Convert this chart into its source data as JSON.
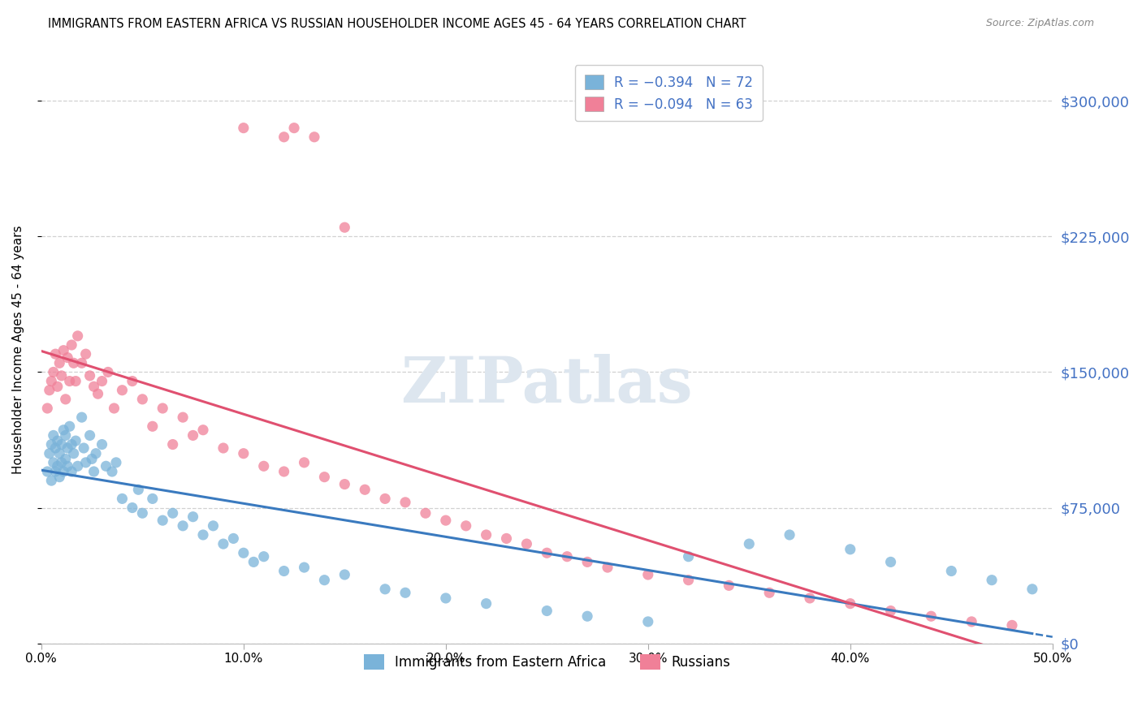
{
  "title": "IMMIGRANTS FROM EASTERN AFRICA VS RUSSIAN HOUSEHOLDER INCOME AGES 45 - 64 YEARS CORRELATION CHART",
  "source": "Source: ZipAtlas.com",
  "ylabel": "Householder Income Ages 45 - 64 years",
  "ytick_labels": [
    "$0",
    "$75,000",
    "$150,000",
    "$225,000",
    "$300,000"
  ],
  "ytick_values": [
    0,
    75000,
    150000,
    225000,
    300000
  ],
  "xlim": [
    0.0,
    50.0
  ],
  "ylim": [
    0,
    325000
  ],
  "series1_color": "#7ab3d9",
  "series2_color": "#f08098",
  "trendline1_color": "#3a7abf",
  "trendline2_color": "#e05070",
  "background_color": "#ffffff",
  "grid_color": "#cccccc",
  "R1": -0.394,
  "N1": 72,
  "R2": -0.094,
  "N2": 63,
  "blue_scatter_x": [
    0.3,
    0.4,
    0.5,
    0.5,
    0.6,
    0.6,
    0.7,
    0.7,
    0.8,
    0.8,
    0.9,
    0.9,
    1.0,
    1.0,
    1.1,
    1.1,
    1.2,
    1.2,
    1.3,
    1.3,
    1.4,
    1.5,
    1.5,
    1.6,
    1.7,
    1.8,
    2.0,
    2.1,
    2.2,
    2.4,
    2.5,
    2.6,
    2.7,
    3.0,
    3.2,
    3.5,
    3.7,
    4.0,
    4.5,
    4.8,
    5.0,
    5.5,
    6.0,
    6.5,
    7.0,
    7.5,
    8.0,
    8.5,
    9.0,
    9.5,
    10.0,
    10.5,
    11.0,
    12.0,
    13.0,
    14.0,
    15.0,
    17.0,
    18.0,
    20.0,
    22.0,
    25.0,
    27.0,
    30.0,
    32.0,
    35.0,
    37.0,
    40.0,
    42.0,
    45.0,
    47.0,
    49.0
  ],
  "blue_scatter_y": [
    95000,
    105000,
    110000,
    90000,
    115000,
    100000,
    108000,
    95000,
    112000,
    98000,
    105000,
    92000,
    110000,
    100000,
    118000,
    95000,
    115000,
    102000,
    108000,
    98000,
    120000,
    110000,
    95000,
    105000,
    112000,
    98000,
    125000,
    108000,
    100000,
    115000,
    102000,
    95000,
    105000,
    110000,
    98000,
    95000,
    100000,
    80000,
    75000,
    85000,
    72000,
    80000,
    68000,
    72000,
    65000,
    70000,
    60000,
    65000,
    55000,
    58000,
    50000,
    45000,
    48000,
    40000,
    42000,
    35000,
    38000,
    30000,
    28000,
    25000,
    22000,
    18000,
    15000,
    12000,
    48000,
    55000,
    60000,
    52000,
    45000,
    40000,
    35000,
    30000
  ],
  "pink_scatter_x": [
    0.3,
    0.4,
    0.5,
    0.6,
    0.7,
    0.8,
    0.9,
    1.0,
    1.1,
    1.2,
    1.3,
    1.4,
    1.5,
    1.6,
    1.7,
    1.8,
    2.0,
    2.2,
    2.4,
    2.6,
    2.8,
    3.0,
    3.3,
    3.6,
    4.0,
    4.5,
    5.0,
    5.5,
    6.0,
    6.5,
    7.0,
    7.5,
    8.0,
    9.0,
    10.0,
    11.0,
    12.0,
    13.0,
    14.0,
    15.0,
    16.0,
    17.0,
    18.0,
    19.0,
    20.0,
    21.0,
    22.0,
    23.0,
    24.0,
    25.0,
    26.0,
    27.0,
    28.0,
    30.0,
    32.0,
    34.0,
    36.0,
    38.0,
    40.0,
    42.0,
    44.0,
    46.0,
    48.0
  ],
  "pink_scatter_y": [
    130000,
    140000,
    145000,
    150000,
    160000,
    142000,
    155000,
    148000,
    162000,
    135000,
    158000,
    145000,
    165000,
    155000,
    145000,
    170000,
    155000,
    160000,
    148000,
    142000,
    138000,
    145000,
    150000,
    130000,
    140000,
    145000,
    135000,
    120000,
    130000,
    110000,
    125000,
    115000,
    118000,
    108000,
    105000,
    98000,
    95000,
    100000,
    92000,
    88000,
    85000,
    80000,
    78000,
    72000,
    68000,
    65000,
    60000,
    58000,
    55000,
    50000,
    48000,
    45000,
    42000,
    38000,
    35000,
    32000,
    28000,
    25000,
    22000,
    18000,
    15000,
    12000,
    10000
  ],
  "pink_high_x": [
    10.0,
    12.0,
    12.5,
    13.5,
    15.0
  ],
  "pink_high_y": [
    285000,
    280000,
    285000,
    280000,
    230000
  ]
}
